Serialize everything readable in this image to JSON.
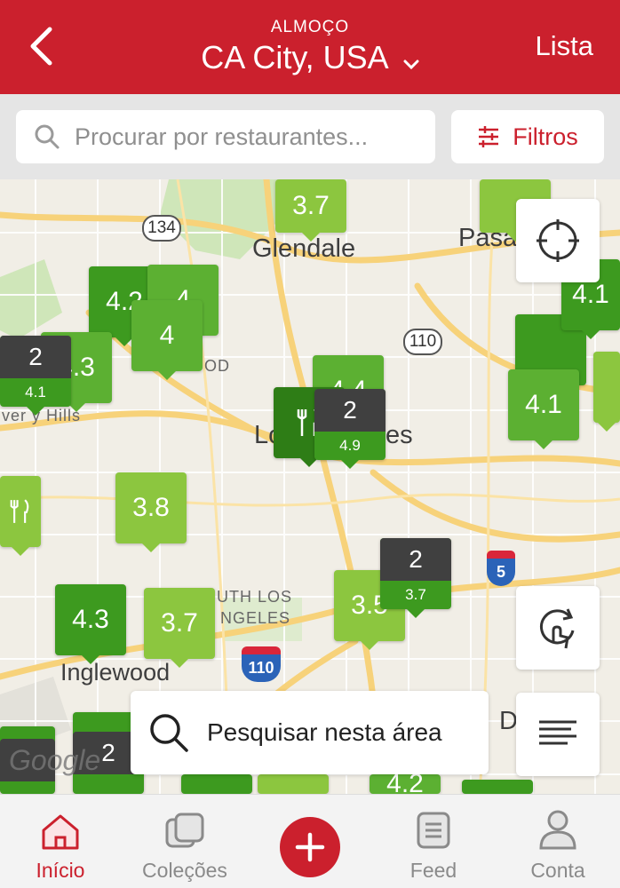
{
  "header": {
    "meal": "ALMOÇO",
    "city": "CA City, USA",
    "list_label": "Lista",
    "brand_color": "#cb202d"
  },
  "search": {
    "placeholder": "Procurar por restaurantes...",
    "filters_label": "Filtros"
  },
  "map": {
    "labels": {
      "glendale": "Glendale",
      "pasadena": "Pasa",
      "los_angeles_a": "Lo",
      "los_angeles_b": "es",
      "inglewood": "Inglewood",
      "south_la_1": "UTH LOS",
      "south_la_2": "NGELES",
      "hollywood": "OD",
      "beverly": "ver y Hills",
      "downey": "D"
    },
    "highways": {
      "r134": "134",
      "r110": "110",
      "i110": "110",
      "i5": "5"
    },
    "pins": [
      {
        "label": "3.7"
      },
      {
        "label": "4.2"
      },
      {
        "label": "4"
      },
      {
        "label": "4"
      },
      {
        "label": "2",
        "sub": "4.1"
      },
      {
        "label": "4.3"
      },
      {
        "label": "4.4"
      },
      {
        "label": "2",
        "sub": "4.9"
      },
      {
        "label": "3.8"
      },
      {
        "label": "4.3"
      },
      {
        "label": "3.7"
      },
      {
        "label": "3.5"
      },
      {
        "label": "2",
        "sub": "3.7"
      },
      {
        "label": "4.1"
      },
      {
        "label": "4.1"
      },
      {
        "label": "4.2"
      },
      {
        "label": "2"
      }
    ],
    "search_area_label": "Pesquisar nesta área",
    "attribution": "Google"
  },
  "tabs": [
    {
      "label": "Início",
      "icon": "home-icon",
      "active": true
    },
    {
      "label": "Coleções",
      "icon": "collections-icon"
    },
    {
      "label": "",
      "icon": "plus-icon"
    },
    {
      "label": "Feed",
      "icon": "feed-icon"
    },
    {
      "label": "Conta",
      "icon": "account-icon"
    }
  ]
}
